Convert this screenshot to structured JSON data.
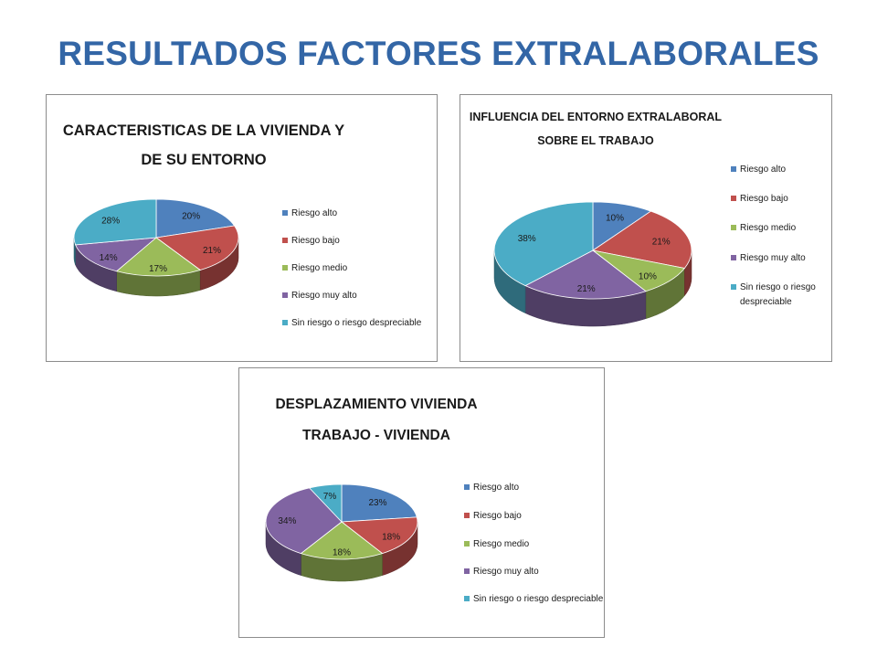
{
  "slide": {
    "title": "RESULTADOS FACTORES EXTRALABORALES"
  },
  "colors": {
    "Riesgo alto": "#4f81bd",
    "Riesgo bajo": "#c0504d",
    "Riesgo medio": "#9bbb59",
    "Riesgo muy alto": "#8064a2",
    "Sin riesgo o riesgo despreciable": "#4bacc6"
  },
  "chart_data": [
    {
      "type": "pie",
      "title": [
        "CARACTERISTICAS DE LA VIVIENDA Y",
        "DE SU ENTORNO"
      ],
      "categories": [
        "Riesgo alto",
        "Riesgo bajo",
        "Riesgo medio",
        "Riesgo muy alto",
        "Sin riesgo o riesgo despreciable"
      ],
      "values": [
        20,
        21,
        17,
        14,
        28
      ],
      "labels": [
        "20%",
        "21%",
        "17%",
        "14%",
        "28%"
      ],
      "legend": [
        [
          "Riesgo alto"
        ],
        [
          "Riesgo bajo"
        ],
        [
          "Riesgo medio"
        ],
        [
          "Riesgo muy alto"
        ],
        [
          "Sin riesgo o riesgo despreciable"
        ]
      ],
      "legend_position": "right"
    },
    {
      "type": "pie",
      "title": [
        "INFLUENCIA DEL ENTORNO EXTRALABORAL",
        "SOBRE EL TRABAJO"
      ],
      "categories": [
        "Riesgo alto",
        "Riesgo bajo",
        "Riesgo medio",
        "Riesgo muy alto",
        "Sin riesgo o riesgo despreciable"
      ],
      "values": [
        10,
        21,
        10,
        21,
        38
      ],
      "labels": [
        "10%",
        "21%",
        "10%",
        "21%",
        "38%"
      ],
      "legend": [
        [
          "Riesgo alto"
        ],
        [
          "Riesgo bajo"
        ],
        [
          "Riesgo medio"
        ],
        [
          "Riesgo muy alto"
        ],
        [
          "Sin riesgo o riesgo",
          "despreciable"
        ]
      ],
      "legend_position": "right"
    },
    {
      "type": "pie",
      "title": [
        "DESPLAZAMIENTO VIVIENDA",
        "TRABAJO - VIVIENDA"
      ],
      "categories": [
        "Riesgo alto",
        "Riesgo bajo",
        "Riesgo medio",
        "Riesgo muy alto",
        "Sin riesgo o riesgo despreciable"
      ],
      "values": [
        23,
        18,
        18,
        34,
        7
      ],
      "labels": [
        "23%",
        "18%",
        "18%",
        "34%",
        "7%"
      ],
      "legend": [
        [
          "Riesgo alto"
        ],
        [
          "Riesgo bajo"
        ],
        [
          "Riesgo medio"
        ],
        [
          "Riesgo muy alto"
        ],
        [
          "Sin riesgo o riesgo despreciable"
        ]
      ],
      "legend_position": "right"
    }
  ]
}
